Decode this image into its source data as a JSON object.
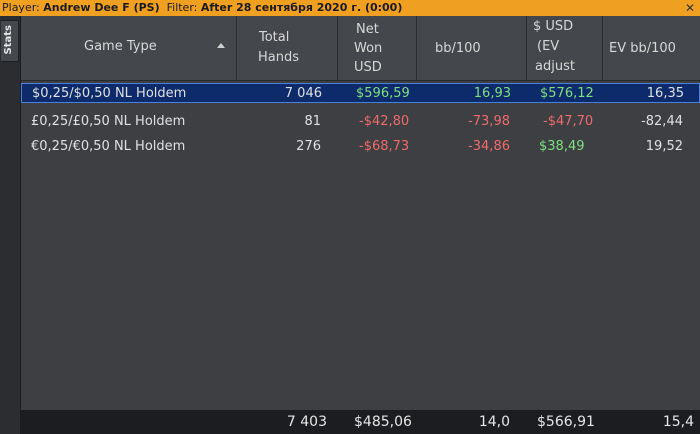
{
  "topbar": {
    "player_label": "Player:",
    "player_value": "Andrew Dee F (PS)",
    "filter_label": "Filter:",
    "filter_value": "After 28 сентября 2020 г. (0:00)",
    "close_glyph": "✕"
  },
  "sidebar": {
    "tab_label": "Stats"
  },
  "table": {
    "headers": {
      "game_type": "Game Type",
      "total_hands": [
        "Total",
        "Hands"
      ],
      "net_won": [
        "Net",
        "Won",
        "USD"
      ],
      "bb100": "bb/100",
      "usd_ev": [
        "$ USD",
        "(EV",
        "adjust"
      ],
      "ev_bb100": "EV bb/100"
    },
    "rows": [
      {
        "game": "$0,25/$0,50 NL Holdem",
        "hands": "7 046",
        "net": "$596,59",
        "bb": "16,93",
        "ev": "$576,12",
        "evbb": "16,35"
      },
      {
        "game": "£0,25/£0,50 NL Holdem",
        "hands": "81",
        "net": "-$42,80",
        "bb": "-73,98",
        "ev": "-$47,70",
        "evbb": "-82,44"
      },
      {
        "game": "€0,25/€0,50 NL Holdem",
        "hands": "276",
        "net": "-$68,73",
        "bb": "-34,86",
        "ev": "$38,49",
        "evbb": "19,52"
      }
    ],
    "totals": {
      "hands": "7 403",
      "net": "$485,06",
      "bb": "14,0",
      "ev": "$566,91",
      "evbb": "15,4"
    }
  },
  "colors": {
    "positive": "#7ee07e",
    "negative": "#ee6b6b",
    "selection": "#0d2a6b",
    "topbar": "#f0a020"
  }
}
